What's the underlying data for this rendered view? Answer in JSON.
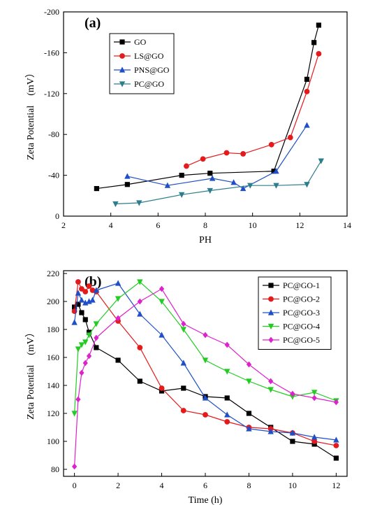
{
  "chart_data": [
    {
      "type": "line",
      "panel_label": "(a)",
      "xlabel": "PH",
      "ylabel": "Zeta Potential　(mV）",
      "xlim": [
        2,
        14
      ],
      "ylim": [
        0,
        -200
      ],
      "y_axis_reversed": true,
      "xticks": [
        2,
        4,
        6,
        8,
        10,
        12,
        14
      ],
      "yticks": [
        0,
        -40,
        -80,
        -120,
        -160,
        -200
      ],
      "xtick_labels": [
        "2",
        "4",
        "6",
        "8",
        "10",
        "12",
        "14"
      ],
      "ytick_labels": [
        "0",
        "-40",
        "-80",
        "-120",
        "-160",
        "-200"
      ],
      "legend_position": "top-left",
      "grid": false,
      "series": [
        {
          "name": "GO",
          "color": "#000000",
          "marker": "square",
          "x": [
            3.4,
            4.7,
            7.0,
            8.2,
            10.9,
            12.3,
            12.6,
            12.8
          ],
          "y": [
            -27,
            -31,
            -40,
            -42,
            -44,
            -134,
            -170,
            -187
          ]
        },
        {
          "name": "LS@GO",
          "color": "#e41a1c",
          "marker": "circle",
          "x": [
            7.2,
            7.9,
            8.9,
            9.6,
            10.8,
            11.6,
            12.3,
            12.8
          ],
          "y": [
            -49,
            -56,
            -62,
            -61,
            -70,
            -77,
            -122,
            -159
          ]
        },
        {
          "name": "PNS@GO",
          "color": "#1f4fc8",
          "marker": "triangle-up",
          "x": [
            4.7,
            6.4,
            8.3,
            9.2,
            9.6,
            11.0,
            12.3
          ],
          "y": [
            -39,
            -30,
            -37,
            -33,
            -27,
            -44,
            -89
          ]
        },
        {
          "name": "PC@GO",
          "color": "#2e7d8c",
          "marker": "triangle-down",
          "x": [
            4.2,
            5.2,
            7.0,
            8.2,
            9.9,
            11.0,
            12.3,
            12.9
          ],
          "y": [
            -12,
            -13,
            -21,
            -25,
            -30,
            -30,
            -31,
            -54
          ]
        }
      ]
    },
    {
      "type": "line",
      "panel_label": "(b)",
      "xlabel": "Time (h)",
      "ylabel": "Zeta Potential　(mV）",
      "xlim": [
        -0.5,
        12.5
      ],
      "ylim": [
        75,
        222
      ],
      "xticks": [
        0,
        2,
        4,
        6,
        8,
        10,
        12
      ],
      "yticks": [
        80,
        100,
        120,
        140,
        160,
        180,
        200,
        220
      ],
      "xtick_labels": [
        "0",
        "2",
        "4",
        "6",
        "8",
        "10",
        "12"
      ],
      "ytick_labels": [
        "80",
        "100",
        "120",
        "140",
        "160",
        "180",
        "200",
        "220"
      ],
      "legend_position": "top-right",
      "grid": false,
      "series": [
        {
          "name": "PC@GO-1",
          "color": "#000000",
          "marker": "square",
          "x": [
            0,
            0.17,
            0.33,
            0.5,
            0.67,
            1,
            2,
            3,
            4,
            5,
            6,
            7,
            8,
            9,
            10,
            11,
            12
          ],
          "y": [
            196,
            198,
            192,
            187,
            178,
            167,
            158,
            143,
            136,
            138,
            132,
            131,
            120,
            110,
            100,
            98,
            88
          ]
        },
        {
          "name": "PC@GO-2",
          "color": "#e41a1c",
          "marker": "circle",
          "x": [
            0,
            0.17,
            0.33,
            0.5,
            0.67,
            0.83,
            1,
            2,
            3,
            4,
            5,
            6,
            7,
            8,
            9,
            10,
            11,
            12
          ],
          "y": [
            193,
            214,
            209,
            207,
            211,
            208,
            207,
            186,
            167,
            138,
            122,
            119,
            114,
            110,
            109,
            106,
            100,
            97
          ]
        },
        {
          "name": "PC@GO-3",
          "color": "#1f4fc8",
          "marker": "triangle-up",
          "x": [
            0,
            0.17,
            0.33,
            0.5,
            0.67,
            0.83,
            1,
            2,
            3,
            4,
            5,
            6,
            7,
            8,
            9,
            10,
            11,
            12
          ],
          "y": [
            185,
            206,
            201,
            199,
            200,
            201,
            208,
            213,
            191,
            176,
            156,
            131,
            119,
            109,
            107,
            106,
            103,
            101
          ]
        },
        {
          "name": "PC@GO-4",
          "color": "#22cc22",
          "marker": "triangle-down",
          "x": [
            0,
            0.17,
            0.33,
            0.5,
            0.67,
            1,
            2,
            3,
            4,
            5,
            6,
            7,
            8,
            9,
            10,
            11,
            12
          ],
          "y": [
            120,
            166,
            169,
            171,
            176,
            184,
            202,
            214,
            200,
            180,
            158,
            150,
            143,
            137,
            132,
            135,
            129
          ]
        },
        {
          "name": "PC@GO-5",
          "color": "#dd22cc",
          "marker": "diamond",
          "x": [
            0,
            0.17,
            0.33,
            0.5,
            0.67,
            1,
            2,
            3,
            4,
            5,
            6,
            7,
            8,
            9,
            10,
            11,
            12
          ],
          "y": [
            82,
            130,
            149,
            156,
            161,
            174,
            188,
            200,
            209,
            184,
            176,
            169,
            155,
            143,
            134,
            131,
            128
          ]
        }
      ]
    }
  ]
}
